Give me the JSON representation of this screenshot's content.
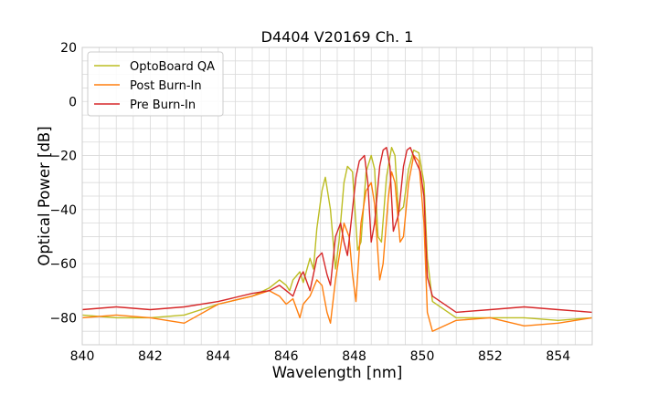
{
  "chart_data": {
    "type": "line",
    "title": "D4404 V20169 Ch. 1",
    "xlabel": "Wavelength [nm]",
    "ylabel": "Optical Power [dB]",
    "xlim": [
      840,
      855
    ],
    "ylim": [
      -90,
      20
    ],
    "xticks": [
      840,
      842,
      844,
      846,
      848,
      850,
      852,
      854
    ],
    "yticks": [
      20,
      0,
      -20,
      -40,
      -60,
      -80
    ],
    "xtick_labels": [
      "840",
      "842",
      "844",
      "846",
      "848",
      "850",
      "852",
      "854"
    ],
    "ytick_labels": [
      "20",
      "0",
      "−20",
      "−40",
      "−60",
      "−80"
    ],
    "grid": true,
    "legend_position": "top-left",
    "series": [
      {
        "name": "OptoBoard QA",
        "color": "#bcbd22",
        "points": [
          [
            840.0,
            -79
          ],
          [
            841.0,
            -80
          ],
          [
            842.0,
            -80
          ],
          [
            843.0,
            -79
          ],
          [
            844.0,
            -75
          ],
          [
            845.0,
            -72
          ],
          [
            845.5,
            -69
          ],
          [
            845.8,
            -66
          ],
          [
            846.0,
            -68
          ],
          [
            846.1,
            -70
          ],
          [
            846.2,
            -66
          ],
          [
            846.4,
            -63
          ],
          [
            846.5,
            -67
          ],
          [
            846.7,
            -58
          ],
          [
            846.8,
            -62
          ],
          [
            846.9,
            -47
          ],
          [
            847.05,
            -33
          ],
          [
            847.15,
            -28
          ],
          [
            847.3,
            -40
          ],
          [
            847.45,
            -62
          ],
          [
            847.55,
            -52
          ],
          [
            847.7,
            -30
          ],
          [
            847.8,
            -24
          ],
          [
            847.95,
            -26
          ],
          [
            848.1,
            -55
          ],
          [
            848.2,
            -52
          ],
          [
            848.35,
            -26
          ],
          [
            848.5,
            -20
          ],
          [
            848.6,
            -25
          ],
          [
            848.7,
            -50
          ],
          [
            848.8,
            -52
          ],
          [
            848.95,
            -28
          ],
          [
            849.1,
            -17
          ],
          [
            849.2,
            -20
          ],
          [
            849.3,
            -41
          ],
          [
            849.45,
            -39
          ],
          [
            849.6,
            -25
          ],
          [
            849.75,
            -18
          ],
          [
            849.9,
            -19
          ],
          [
            850.05,
            -30
          ],
          [
            850.15,
            -58
          ],
          [
            850.3,
            -74
          ],
          [
            851.0,
            -80
          ],
          [
            852.0,
            -80
          ],
          [
            853.0,
            -80
          ],
          [
            854.0,
            -81
          ],
          [
            855.0,
            -80
          ]
        ]
      },
      {
        "name": "Post Burn-In",
        "color": "#ff7f0e",
        "points": [
          [
            840.0,
            -80
          ],
          [
            841.0,
            -79
          ],
          [
            842.0,
            -80
          ],
          [
            843.0,
            -82
          ],
          [
            844.0,
            -75
          ],
          [
            845.0,
            -72
          ],
          [
            845.5,
            -70
          ],
          [
            845.8,
            -72
          ],
          [
            846.0,
            -75
          ],
          [
            846.2,
            -73
          ],
          [
            846.4,
            -80
          ],
          [
            846.5,
            -75
          ],
          [
            846.7,
            -72
          ],
          [
            846.9,
            -66
          ],
          [
            847.05,
            -68
          ],
          [
            847.2,
            -78
          ],
          [
            847.3,
            -82
          ],
          [
            847.45,
            -66
          ],
          [
            847.6,
            -54
          ],
          [
            847.7,
            -45
          ],
          [
            847.85,
            -50
          ],
          [
            847.95,
            -64
          ],
          [
            848.05,
            -74
          ],
          [
            848.2,
            -45
          ],
          [
            848.35,
            -33
          ],
          [
            848.5,
            -30
          ],
          [
            848.6,
            -38
          ],
          [
            848.75,
            -66
          ],
          [
            848.85,
            -60
          ],
          [
            849.0,
            -36
          ],
          [
            849.1,
            -26
          ],
          [
            849.2,
            -30
          ],
          [
            849.35,
            -52
          ],
          [
            849.45,
            -50
          ],
          [
            849.6,
            -30
          ],
          [
            849.75,
            -20
          ],
          [
            849.9,
            -22
          ],
          [
            850.05,
            -45
          ],
          [
            850.15,
            -78
          ],
          [
            850.3,
            -85
          ],
          [
            851.0,
            -81
          ],
          [
            852.0,
            -80
          ],
          [
            853.0,
            -83
          ],
          [
            854.0,
            -82
          ],
          [
            855.0,
            -80
          ]
        ]
      },
      {
        "name": "Pre Burn-In",
        "color": "#d62728",
        "points": [
          [
            840.0,
            -77
          ],
          [
            841.0,
            -76
          ],
          [
            842.0,
            -77
          ],
          [
            843.0,
            -76
          ],
          [
            844.0,
            -74
          ],
          [
            845.0,
            -71
          ],
          [
            845.5,
            -70
          ],
          [
            845.8,
            -68
          ],
          [
            846.0,
            -70
          ],
          [
            846.2,
            -72
          ],
          [
            846.4,
            -65
          ],
          [
            846.5,
            -63
          ],
          [
            846.7,
            -70
          ],
          [
            846.9,
            -58
          ],
          [
            847.05,
            -56
          ],
          [
            847.2,
            -64
          ],
          [
            847.3,
            -68
          ],
          [
            847.45,
            -50
          ],
          [
            847.6,
            -45
          ],
          [
            847.7,
            -52
          ],
          [
            847.8,
            -57
          ],
          [
            847.95,
            -40
          ],
          [
            848.05,
            -28
          ],
          [
            848.15,
            -22
          ],
          [
            848.3,
            -20
          ],
          [
            848.4,
            -30
          ],
          [
            848.5,
            -52
          ],
          [
            848.6,
            -45
          ],
          [
            848.75,
            -24
          ],
          [
            848.85,
            -18
          ],
          [
            848.95,
            -17
          ],
          [
            849.05,
            -24
          ],
          [
            849.15,
            -48
          ],
          [
            849.3,
            -42
          ],
          [
            849.45,
            -24
          ],
          [
            849.55,
            -18
          ],
          [
            849.65,
            -17
          ],
          [
            849.8,
            -22
          ],
          [
            849.95,
            -26
          ],
          [
            850.05,
            -35
          ],
          [
            850.15,
            -65
          ],
          [
            850.3,
            -72
          ],
          [
            851.0,
            -78
          ],
          [
            852.0,
            -77
          ],
          [
            853.0,
            -76
          ],
          [
            854.0,
            -77
          ],
          [
            855.0,
            -78
          ]
        ]
      }
    ]
  }
}
